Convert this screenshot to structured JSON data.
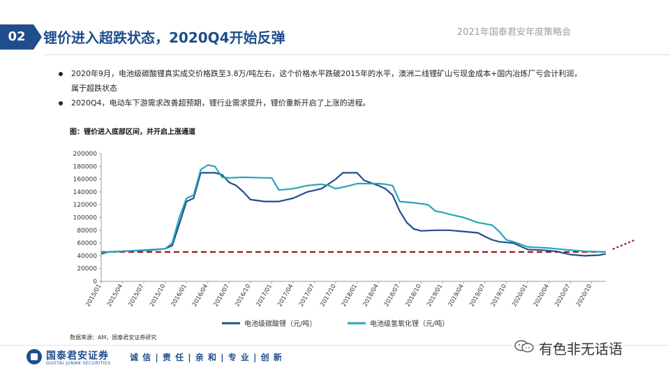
{
  "header": {
    "section_number": "02",
    "title": "锂价进入超跌状态，2020Q4开始反弹",
    "conference": "2021年国泰君安年度策略会"
  },
  "bullets": [
    "2020年9月，电池级碳酸锂真实成交价格跌至3.8万/吨左右，这个价格水平跌破2015年的水平，澳洲二线锂矿山亏现金成本+国内冶炼厂亏会计利润，属于超跌状态",
    "2020Q4，电动车下游需求改善超预期，锂行业需求提升，锂价重新开启了上涨的进程。"
  ],
  "chart_caption": "图：锂价进入底部区间，并开启上涨通道",
  "source": "数据来源：AM，国泰君安证券研究",
  "footer": {
    "brand": "国泰君安证券",
    "brand_en": "GUOTAI JUNAN SECURITIES",
    "tagline": "诚 信 | 责 任 | 亲 和 | 专 业 | 创 新",
    "wechat": "有色非无话语"
  },
  "chart_data": {
    "type": "line",
    "ylim": [
      0,
      200000
    ],
    "yticks": [
      0,
      20000,
      40000,
      60000,
      80000,
      100000,
      120000,
      140000,
      160000,
      180000,
      200000
    ],
    "x_start": "2015/01",
    "x_end": "2020/12",
    "xticks": [
      "2015/01",
      "2015/04",
      "2015/07",
      "2015/10",
      "2016/01",
      "2016/04",
      "2016/07",
      "2016/10",
      "2017/01",
      "2017/04",
      "2017/07",
      "2017/10",
      "2018/01",
      "2018/04",
      "2018/07",
      "2018/10",
      "2019/01",
      "2019/04",
      "2019/07",
      "2019/10",
      "2020/01",
      "2020/04",
      "2020/07",
      "2020/10"
    ],
    "reference_line": {
      "value": 46000,
      "color": "#a31515",
      "style": "dashed"
    },
    "trend_arrow_color": "#a31515",
    "series": [
      {
        "name": "电池级碳酸锂（元/吨）",
        "color": "#1f4e8c",
        "points": [
          [
            "2015/01",
            43000
          ],
          [
            "2015/02",
            46000
          ],
          [
            "2015/04",
            47000
          ],
          [
            "2015/06",
            48000
          ],
          [
            "2015/08",
            49000
          ],
          [
            "2015/10",
            51000
          ],
          [
            "2015/11",
            56000
          ],
          [
            "2015/12",
            90000
          ],
          [
            "2016/01",
            125000
          ],
          [
            "2016/02",
            130000
          ],
          [
            "2016/03",
            170000
          ],
          [
            "2016/05",
            170000
          ],
          [
            "2016/06",
            167000
          ],
          [
            "2016/07",
            155000
          ],
          [
            "2016/08",
            150000
          ],
          [
            "2016/09",
            140000
          ],
          [
            "2016/10",
            128000
          ],
          [
            "2016/12",
            125000
          ],
          [
            "2017/02",
            125000
          ],
          [
            "2017/04",
            130000
          ],
          [
            "2017/06",
            140000
          ],
          [
            "2017/08",
            145000
          ],
          [
            "2017/10",
            160000
          ],
          [
            "2017/11",
            170000
          ],
          [
            "2018/01",
            170000
          ],
          [
            "2018/02",
            158000
          ],
          [
            "2018/04",
            150000
          ],
          [
            "2018/05",
            145000
          ],
          [
            "2018/06",
            135000
          ],
          [
            "2018/07",
            110000
          ],
          [
            "2018/08",
            92000
          ],
          [
            "2018/09",
            82000
          ],
          [
            "2018/10",
            79000
          ],
          [
            "2018/12",
            80000
          ],
          [
            "2019/02",
            80000
          ],
          [
            "2019/04",
            78000
          ],
          [
            "2019/06",
            76000
          ],
          [
            "2019/07",
            70000
          ],
          [
            "2019/08",
            65000
          ],
          [
            "2019/09",
            62000
          ],
          [
            "2019/11",
            60000
          ],
          [
            "2019/12",
            55000
          ],
          [
            "2020/01",
            50000
          ],
          [
            "2020/03",
            49000
          ],
          [
            "2020/05",
            47000
          ],
          [
            "2020/07",
            42000
          ],
          [
            "2020/09",
            40000
          ],
          [
            "2020/11",
            41000
          ],
          [
            "2020/12",
            43000
          ]
        ]
      },
      {
        "name": "电池级氢氧化锂（元/吨）",
        "color": "#29a3ba",
        "points": [
          [
            "2015/01",
            45000
          ],
          [
            "2015/04",
            47000
          ],
          [
            "2015/07",
            49000
          ],
          [
            "2015/10",
            51000
          ],
          [
            "2015/11",
            60000
          ],
          [
            "2015/12",
            100000
          ],
          [
            "2016/01",
            130000
          ],
          [
            "2016/02",
            135000
          ],
          [
            "2016/03",
            175000
          ],
          [
            "2016/04",
            182000
          ],
          [
            "2016/05",
            180000
          ],
          [
            "2016/06",
            163000
          ],
          [
            "2016/07",
            162000
          ],
          [
            "2016/09",
            163000
          ],
          [
            "2016/12",
            162000
          ],
          [
            "2017/01",
            162000
          ],
          [
            "2017/02",
            143000
          ],
          [
            "2017/04",
            145000
          ],
          [
            "2017/06",
            150000
          ],
          [
            "2017/08",
            152000
          ],
          [
            "2017/09",
            150000
          ],
          [
            "2017/10",
            145000
          ],
          [
            "2017/12",
            150000
          ],
          [
            "2018/01",
            153000
          ],
          [
            "2018/04",
            153000
          ],
          [
            "2018/05",
            152000
          ],
          [
            "2018/06",
            150000
          ],
          [
            "2018/07",
            125000
          ],
          [
            "2018/09",
            123000
          ],
          [
            "2018/11",
            120000
          ],
          [
            "2018/12",
            110000
          ],
          [
            "2019/01",
            108000
          ],
          [
            "2019/02",
            105000
          ],
          [
            "2019/04",
            100000
          ],
          [
            "2019/06",
            92000
          ],
          [
            "2019/07",
            90000
          ],
          [
            "2019/08",
            88000
          ],
          [
            "2019/09",
            78000
          ],
          [
            "2019/10",
            65000
          ],
          [
            "2019/11",
            62000
          ],
          [
            "2019/12",
            58000
          ],
          [
            "2020/01",
            54000
          ],
          [
            "2020/04",
            52000
          ],
          [
            "2020/06",
            50000
          ],
          [
            "2020/09",
            47000
          ],
          [
            "2020/12",
            46000
          ]
        ]
      }
    ]
  }
}
